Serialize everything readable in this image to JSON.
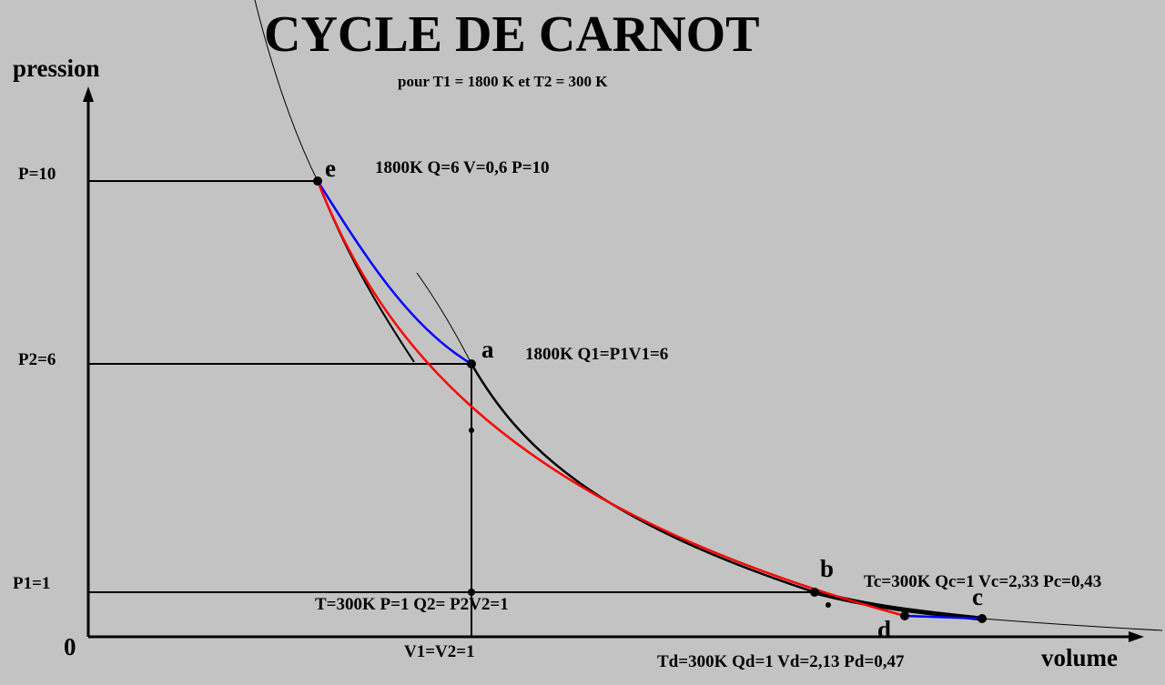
{
  "title": "CYCLE DE CARNOT",
  "subtitle": "pour T1 = 1800 K et T2 = 300 K",
  "axes": {
    "y_label": "pression",
    "x_label": "volume",
    "origin": "0"
  },
  "ticks": {
    "p10": "P=10",
    "p2": "P2=6",
    "p1": "P1=1",
    "v1": "V1=V2=1"
  },
  "points": {
    "e": "e",
    "a": "a",
    "b": "b",
    "c": "c",
    "d": "d"
  },
  "annotations": {
    "e": "1800K Q=6  V=0,6  P=10",
    "a": "1800K Q1=P1V1=6",
    "c": "Tc=300K  Qc=1 Vc=2,33    Pc=0,43",
    "t": "T=300K P=1 Q2= P2V2=1",
    "d": "Td=300K Qd=1 Vd=2,13  Pd=0,47"
  },
  "colors": {
    "background": "#c3c3c3",
    "black_curve": "#000000",
    "blue_curve": "#0000ff",
    "red_curve": "#ff0000"
  }
}
